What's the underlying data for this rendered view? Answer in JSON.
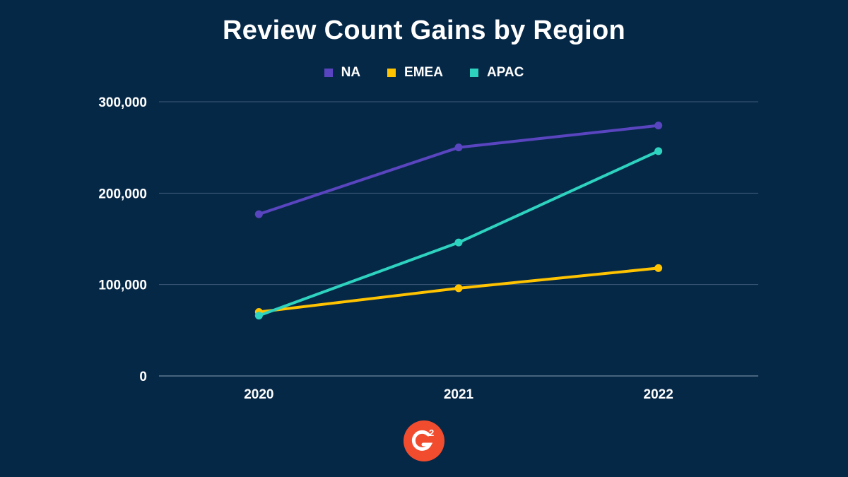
{
  "chart_data": {
    "type": "line",
    "title": "Review Count Gains by Region",
    "categories": [
      "2020",
      "2021",
      "2022"
    ],
    "series": [
      {
        "name": "NA",
        "color": "#5a45c0",
        "values": [
          177000,
          250000,
          274000
        ]
      },
      {
        "name": "EMEA",
        "color": "#ffc300",
        "values": [
          70000,
          96000,
          118000
        ]
      },
      {
        "name": "APAC",
        "color": "#2ed3c0",
        "values": [
          66000,
          146000,
          246000
        ]
      }
    ],
    "ylim": [
      0,
      300000
    ],
    "yticks": [
      0,
      100000,
      200000,
      300000
    ],
    "ytick_labels": [
      "0",
      "100,000",
      "200,000",
      "300,000"
    ],
    "grid": true,
    "legend_position": "top-center",
    "xlabel": "",
    "ylabel": ""
  },
  "branding": {
    "logo": "G2",
    "logo_superscript": "2",
    "logo_color": "#f24c2e"
  }
}
